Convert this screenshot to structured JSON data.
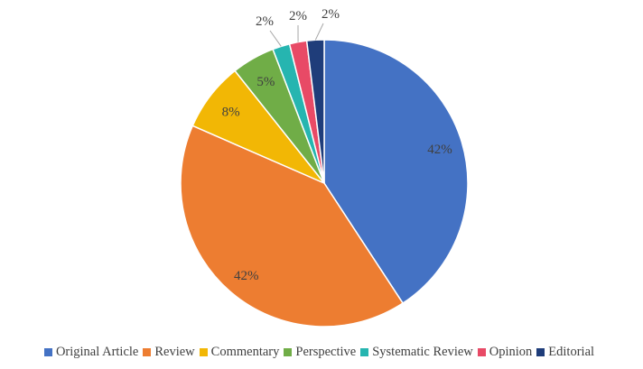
{
  "chart_data": {
    "type": "pie",
    "title": "",
    "legend_position": "bottom",
    "categories": [
      "Original Article",
      "Review",
      "Commentary",
      "Perspective",
      "Systematic Review",
      "Opinion",
      "Editorial"
    ],
    "values": [
      42,
      42,
      8,
      5,
      2,
      2,
      2
    ],
    "labels": [
      "42%",
      "42%",
      "8%",
      "5%",
      "2%",
      "2%",
      "2%"
    ],
    "colors": [
      "#4472C4",
      "#ED7D31",
      "#F2B705",
      "#70AD47",
      "#26B5B0",
      "#E84A66",
      "#1F3D7A"
    ]
  }
}
